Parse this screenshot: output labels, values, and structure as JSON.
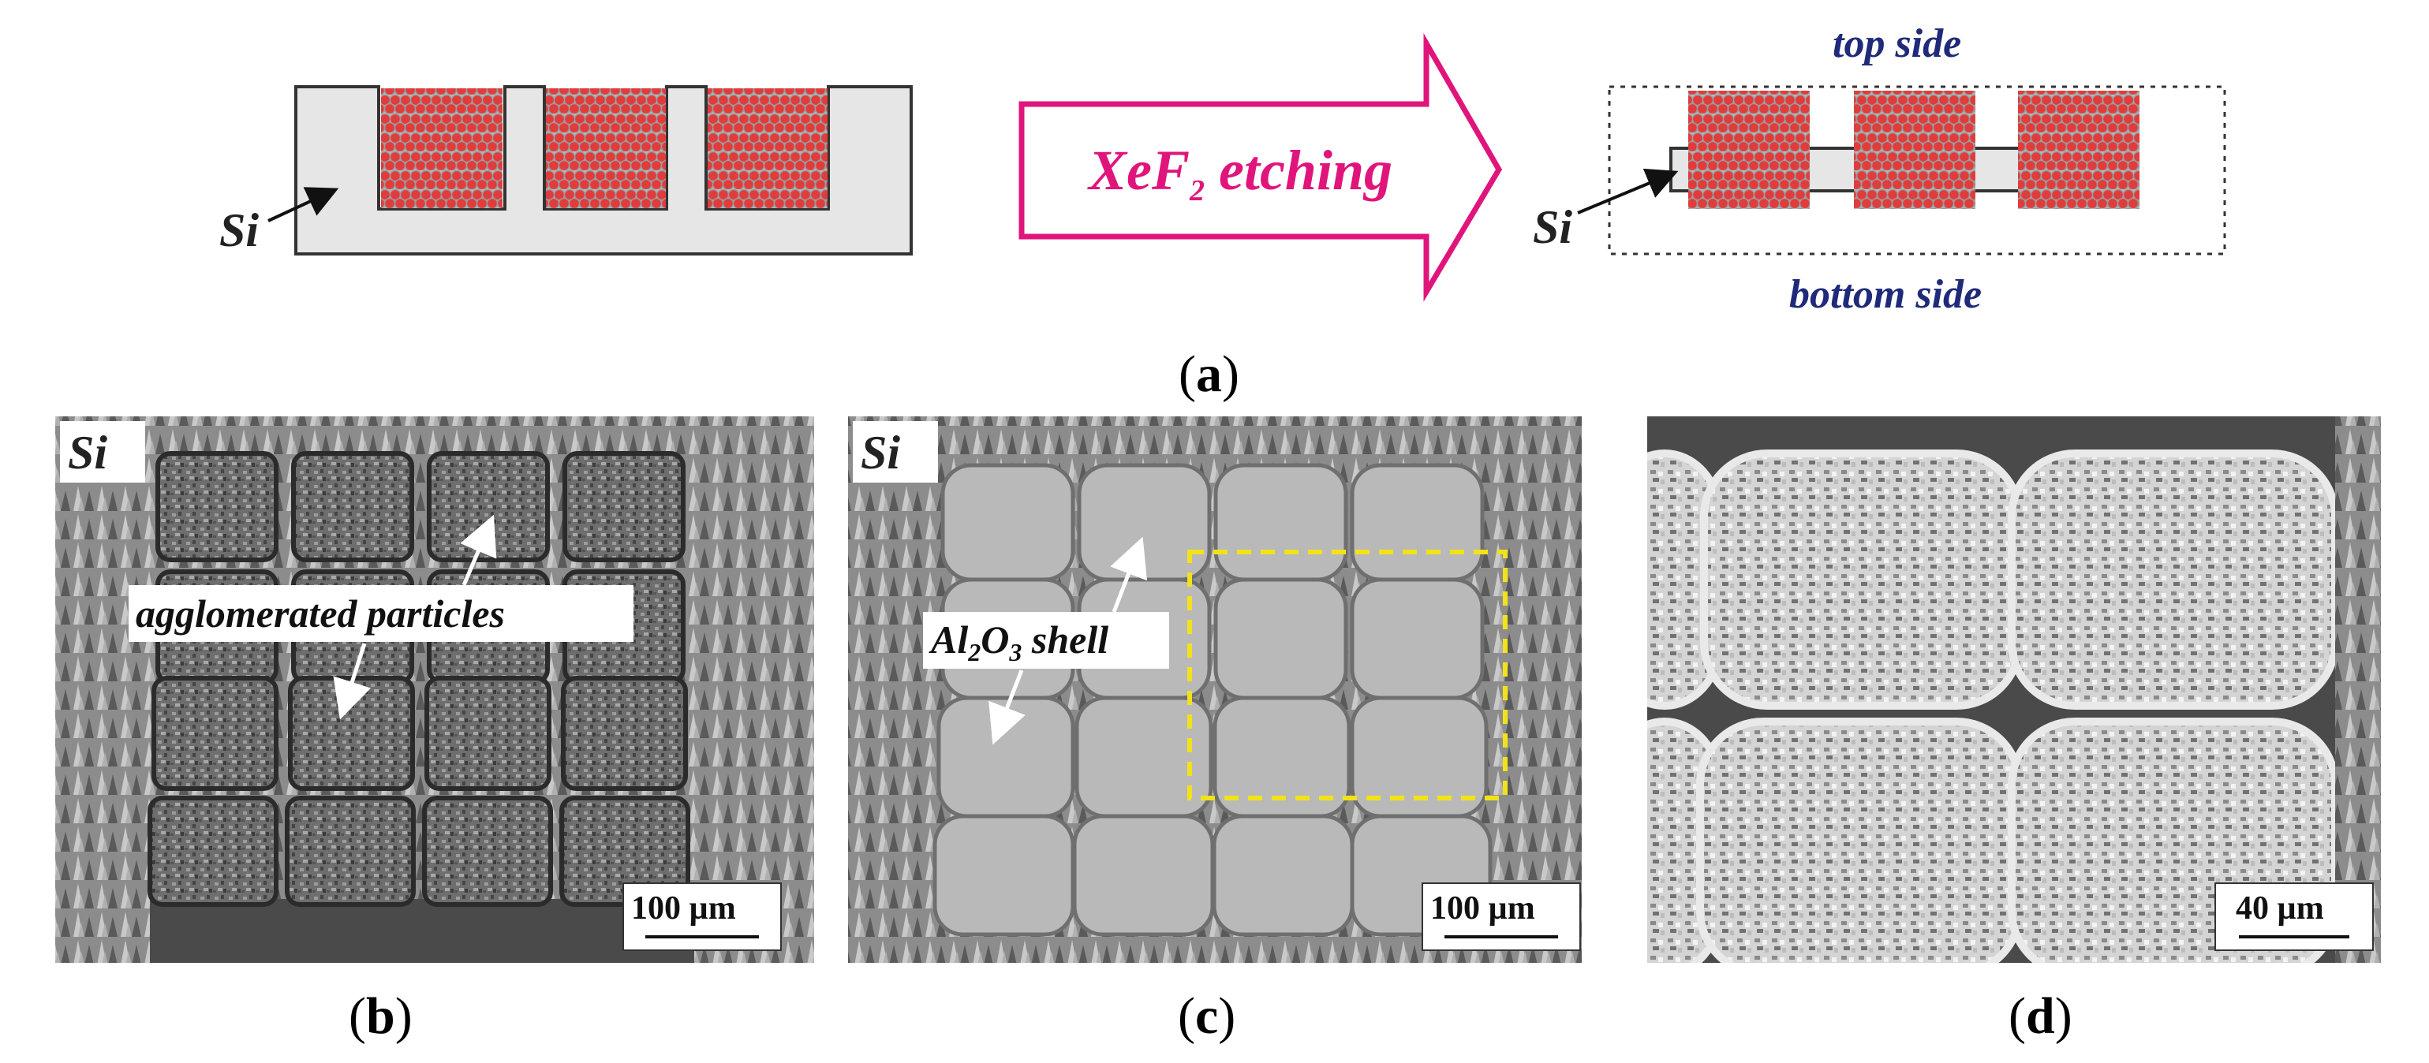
{
  "panel_a": {
    "si_left": "Si",
    "arrow_text": "XeF",
    "arrow_sub": "2",
    "arrow_text_after": " etching",
    "si_right": "Si",
    "top_side": "top side",
    "bottom_side": "bottom side",
    "caption_open": "(",
    "caption_letter": "a",
    "caption_close": ")"
  },
  "panel_b": {
    "si_label": "Si",
    "annotation": "agglomerated particles",
    "scale": "100 µm",
    "caption_open": "(",
    "caption_letter": "b",
    "caption_close": ")"
  },
  "panel_c": {
    "si_label": "Si",
    "ann_al": "Al",
    "ann_sub1": "2",
    "ann_o": "O",
    "ann_sub2": "3",
    "ann_rest": " shell",
    "scale": "100 µm",
    "caption_open": "(",
    "caption_letter": "c",
    "caption_close": ")"
  },
  "panel_d": {
    "scale": "40 µm",
    "caption_open": "(",
    "caption_letter": "d",
    "caption_close": ")"
  },
  "colors": {
    "particle_fill": "#e23b3b",
    "particle_stroke": "#8a8a8a",
    "si_fill": "#e6e6e6",
    "arrow_color": "#e0157c",
    "label_blue": "#1f2a7a",
    "dashed_box": "#f2e21a"
  }
}
